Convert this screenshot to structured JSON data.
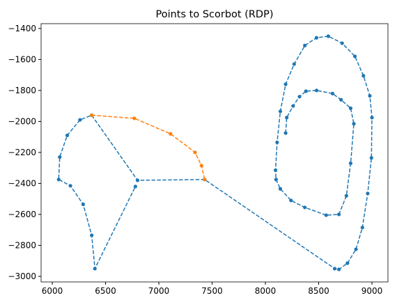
{
  "chart_data": {
    "type": "line",
    "title": "Points to Scorbot (RDP)",
    "xlim": [
      5895,
      9150
    ],
    "ylim": [
      -3036,
      -1369
    ],
    "xticks": [
      6000,
      6500,
      7000,
      7500,
      8000,
      8500,
      9000
    ],
    "yticks": [
      {
        "value": -1400,
        "label": "−1400"
      },
      {
        "value": -1600,
        "label": "−1600"
      },
      {
        "value": -1800,
        "label": "−1800"
      },
      {
        "value": -2000,
        "label": "−2000"
      },
      {
        "value": -2200,
        "label": "−2200"
      },
      {
        "value": -2400,
        "label": "−2400"
      },
      {
        "value": -2600,
        "label": "−2600"
      },
      {
        "value": -2800,
        "label": "−2800"
      },
      {
        "value": -3000,
        "label": "−3000"
      }
    ],
    "series": [
      {
        "color": "#1f77b4",
        "x": [
          8190,
          8200,
          8260,
          8320,
          8380,
          8480,
          8630,
          8710,
          8800,
          8830,
          8800,
          8760,
          8690,
          8570,
          8370,
          8240,
          8140,
          8100,
          8095,
          8110,
          8140,
          8190,
          8270,
          8370,
          8480,
          8590,
          8720,
          8840,
          8920,
          8980,
          9000,
          8995,
          8960,
          8910,
          8850,
          8770,
          8690,
          8650,
          7430,
          6800,
          6370,
          6260,
          6140,
          6070,
          6060,
          6170,
          6290,
          6370,
          6400,
          6780
        ],
        "values": [
          -2075,
          -1975,
          -1900,
          -1840,
          -1805,
          -1800,
          -1820,
          -1860,
          -1915,
          -2015,
          -2270,
          -2480,
          -2600,
          -2605,
          -2555,
          -2510,
          -2435,
          -2375,
          -2315,
          -2135,
          -1935,
          -1760,
          -1630,
          -1510,
          -1460,
          -1450,
          -1495,
          -1580,
          -1705,
          -1835,
          -1975,
          -2235,
          -2465,
          -2685,
          -2825,
          -2915,
          -2955,
          -2950,
          -2375,
          -2380,
          -1960,
          -1990,
          -2090,
          -2230,
          -2375,
          -2415,
          -2535,
          -2735,
          -2950,
          -2420
        ]
      },
      {
        "color": "#ff7f0e",
        "x": [
          6370,
          6770,
          7110,
          7340,
          7400,
          7430
        ],
        "values": [
          -1960,
          -1980,
          -2080,
          -2200,
          -2285,
          -2375
        ]
      }
    ]
  }
}
